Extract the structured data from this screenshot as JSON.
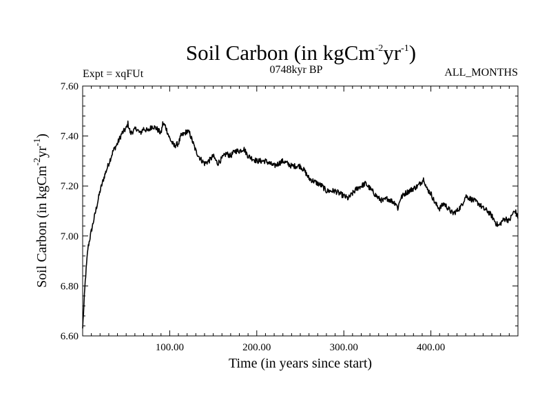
{
  "chart_data": {
    "type": "line",
    "title": {
      "main": "Soil Carbon (in kgCm",
      "exp1": "-2",
      "mid": "yr",
      "exp2": "-1",
      "end": ")"
    },
    "experiment": "Expt = xqFUt",
    "period": "0748kyr BP",
    "season": "ALL_MONTHS",
    "xlabel": "Time (in years since start)",
    "ylabel": {
      "main": "Soil Carbon (in kgCm",
      "exp1": "-2",
      "mid": "yr",
      "exp2": "-1",
      "end": ")"
    },
    "xlim": [
      0,
      500
    ],
    "ylim": [
      6.6,
      7.6
    ],
    "x_ticks": [
      100,
      200,
      300,
      400
    ],
    "x_tick_labels": [
      "100.00",
      "200.00",
      "300.00",
      "400.00"
    ],
    "y_ticks": [
      6.6,
      6.8,
      7.0,
      7.2,
      7.4,
      7.6
    ],
    "y_tick_labels": [
      "6.60",
      "6.80",
      "7.00",
      "7.20",
      "7.40",
      "7.60"
    ],
    "series": [
      {
        "name": "Soil Carbon",
        "color": "#000000",
        "points": [
          [
            0,
            6.63
          ],
          [
            3,
            6.82
          ],
          [
            6,
            6.95
          ],
          [
            10,
            7.02
          ],
          [
            15,
            7.1
          ],
          [
            20,
            7.18
          ],
          [
            25,
            7.24
          ],
          [
            30,
            7.29
          ],
          [
            35,
            7.34
          ],
          [
            40,
            7.37
          ],
          [
            45,
            7.41
          ],
          [
            50,
            7.43
          ],
          [
            52,
            7.45
          ],
          [
            55,
            7.41
          ],
          [
            58,
            7.42
          ],
          [
            62,
            7.43
          ],
          [
            66,
            7.41
          ],
          [
            70,
            7.43
          ],
          [
            75,
            7.42
          ],
          [
            80,
            7.44
          ],
          [
            85,
            7.43
          ],
          [
            90,
            7.41
          ],
          [
            92,
            7.45
          ],
          [
            95,
            7.44
          ],
          [
            100,
            7.39
          ],
          [
            105,
            7.36
          ],
          [
            110,
            7.37
          ],
          [
            113,
            7.4
          ],
          [
            117,
            7.41
          ],
          [
            120,
            7.42
          ],
          [
            123,
            7.41
          ],
          [
            126,
            7.38
          ],
          [
            130,
            7.34
          ],
          [
            135,
            7.31
          ],
          [
            140,
            7.29
          ],
          [
            145,
            7.3
          ],
          [
            150,
            7.32
          ],
          [
            155,
            7.29
          ],
          [
            160,
            7.31
          ],
          [
            165,
            7.33
          ],
          [
            170,
            7.32
          ],
          [
            175,
            7.34
          ],
          [
            180,
            7.34
          ],
          [
            185,
            7.35
          ],
          [
            190,
            7.32
          ],
          [
            195,
            7.31
          ],
          [
            200,
            7.3
          ],
          [
            210,
            7.3
          ],
          [
            220,
            7.28
          ],
          [
            230,
            7.3
          ],
          [
            240,
            7.28
          ],
          [
            250,
            7.28
          ],
          [
            255,
            7.26
          ],
          [
            260,
            7.23
          ],
          [
            265,
            7.22
          ],
          [
            270,
            7.21
          ],
          [
            275,
            7.2
          ],
          [
            280,
            7.18
          ],
          [
            290,
            7.18
          ],
          [
            300,
            7.16
          ],
          [
            305,
            7.15
          ],
          [
            310,
            7.17
          ],
          [
            315,
            7.19
          ],
          [
            320,
            7.2
          ],
          [
            325,
            7.21
          ],
          [
            330,
            7.19
          ],
          [
            335,
            7.17
          ],
          [
            340,
            7.15
          ],
          [
            345,
            7.14
          ],
          [
            350,
            7.15
          ],
          [
            355,
            7.14
          ],
          [
            360,
            7.13
          ],
          [
            362,
            7.11
          ],
          [
            365,
            7.15
          ],
          [
            370,
            7.17
          ],
          [
            375,
            7.18
          ],
          [
            380,
            7.19
          ],
          [
            385,
            7.2
          ],
          [
            390,
            7.22
          ],
          [
            392,
            7.23
          ],
          [
            395,
            7.19
          ],
          [
            400,
            7.17
          ],
          [
            405,
            7.13
          ],
          [
            410,
            7.11
          ],
          [
            415,
            7.13
          ],
          [
            420,
            7.11
          ],
          [
            425,
            7.09
          ],
          [
            430,
            7.1
          ],
          [
            435,
            7.12
          ],
          [
            440,
            7.16
          ],
          [
            445,
            7.15
          ],
          [
            450,
            7.14
          ],
          [
            455,
            7.13
          ],
          [
            460,
            7.11
          ],
          [
            465,
            7.1
          ],
          [
            470,
            7.08
          ],
          [
            475,
            7.05
          ],
          [
            478,
            7.04
          ],
          [
            482,
            7.06
          ],
          [
            486,
            7.07
          ],
          [
            490,
            7.06
          ],
          [
            494,
            7.09
          ],
          [
            497,
            7.1
          ],
          [
            500,
            7.07
          ]
        ]
      }
    ]
  }
}
